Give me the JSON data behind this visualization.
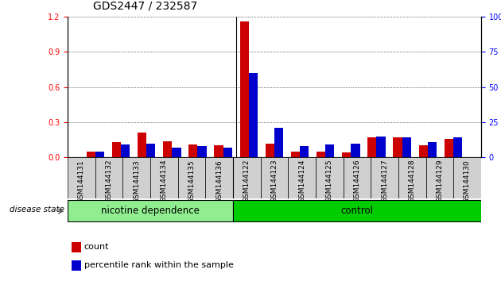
{
  "title": "GDS2447 / 232587",
  "samples": [
    "GSM144131",
    "GSM144132",
    "GSM144133",
    "GSM144134",
    "GSM144135",
    "GSM144136",
    "GSM144122",
    "GSM144123",
    "GSM144124",
    "GSM144125",
    "GSM144126",
    "GSM144127",
    "GSM144128",
    "GSM144129",
    "GSM144130"
  ],
  "count_values": [
    0.05,
    0.13,
    0.21,
    0.14,
    0.11,
    0.1,
    1.16,
    0.12,
    0.05,
    0.05,
    0.04,
    0.17,
    0.17,
    0.1,
    0.16
  ],
  "percentile_values": [
    4,
    9,
    10,
    7,
    8,
    7,
    60,
    21,
    8,
    9,
    10,
    15,
    14,
    11,
    14
  ],
  "groups": [
    {
      "label": "nicotine dependence",
      "start": 0,
      "end": 6,
      "color": "#90ee90"
    },
    {
      "label": "control",
      "start": 6,
      "end": 15,
      "color": "#00cc00"
    }
  ],
  "group_label_prefix": "disease state",
  "ylim_left": [
    0,
    1.2
  ],
  "ylim_right": [
    0,
    100
  ],
  "yticks_left": [
    0,
    0.3,
    0.6,
    0.9,
    1.2
  ],
  "yticks_right": [
    0,
    25,
    50,
    75,
    100
  ],
  "bar_color_count": "#cc0000",
  "bar_color_percentile": "#0000cc",
  "bar_width": 0.35,
  "background_color": "#ffffff",
  "grid_color": "#000000",
  "title_fontsize": 10,
  "tick_fontsize": 7
}
